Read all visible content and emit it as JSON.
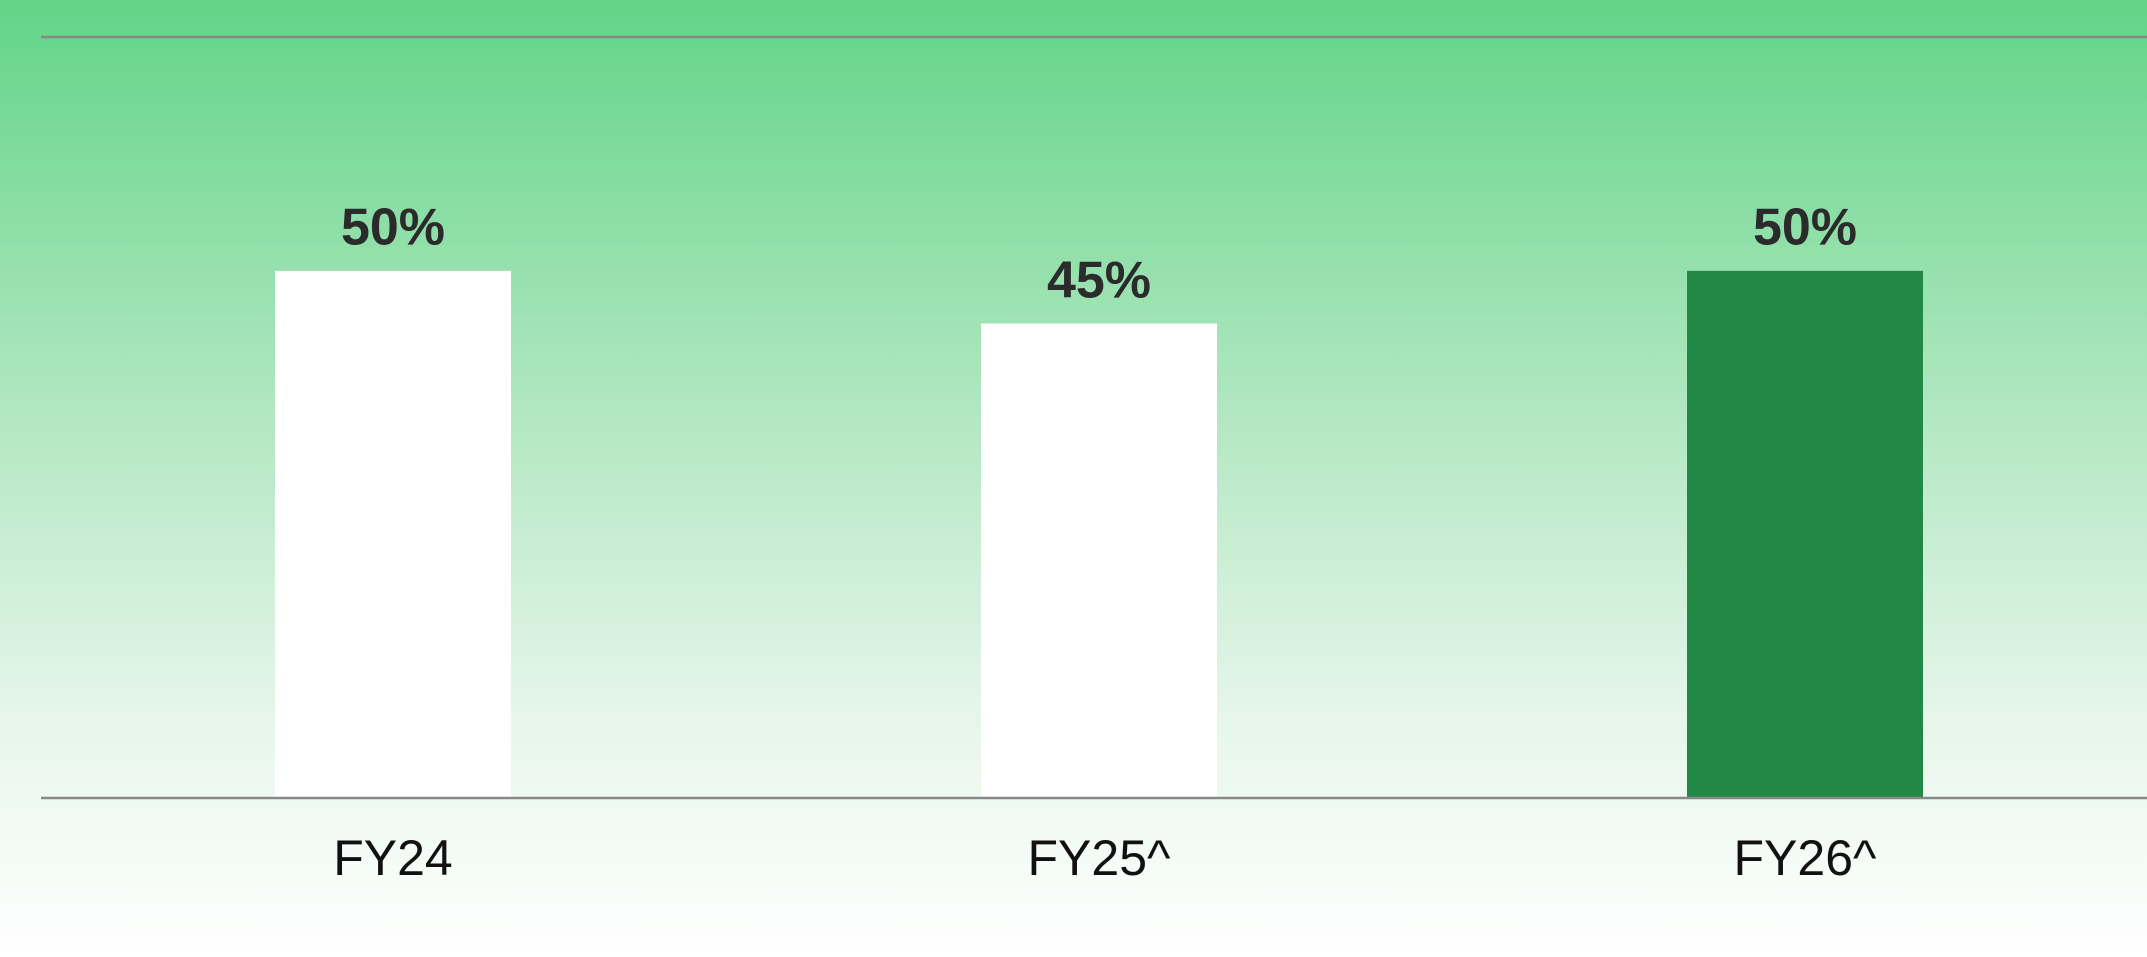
{
  "chart_data": {
    "type": "bar",
    "categories": [
      "FY24",
      "FY25^",
      "FY26^"
    ],
    "values": [
      50,
      45,
      50
    ],
    "value_labels": [
      "50%",
      "45%",
      "50%"
    ],
    "colors": [
      "#ffffff",
      "#ffffff",
      "#218845"
    ],
    "ylim": [
      0,
      70
    ]
  }
}
